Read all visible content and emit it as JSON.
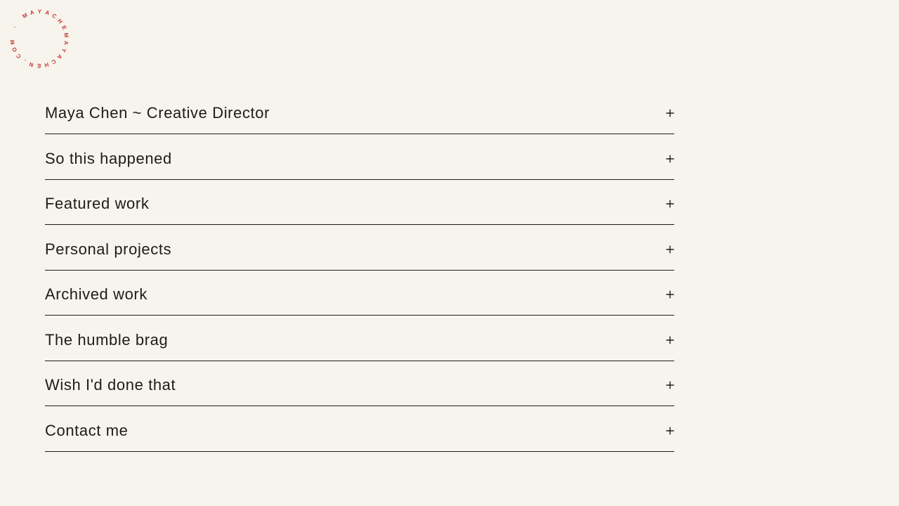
{
  "page": {
    "background_color": "#f7f4ee",
    "ink_color": "#1d1c1a"
  },
  "logo": {
    "circular_text": "MAYACHEMAYACHEN.COM · ",
    "color": "#c5392f"
  },
  "accordion": {
    "toggle_icon": "plus-icon",
    "toggle_glyph": "+",
    "items": [
      {
        "label": "Maya Chen ~ Creative Director"
      },
      {
        "label": "So this happened"
      },
      {
        "label": "Featured work"
      },
      {
        "label": "Personal projects"
      },
      {
        "label": "Archived work"
      },
      {
        "label": "The humble brag"
      },
      {
        "label": "Wish I'd done that"
      },
      {
        "label": "Contact me"
      }
    ]
  }
}
